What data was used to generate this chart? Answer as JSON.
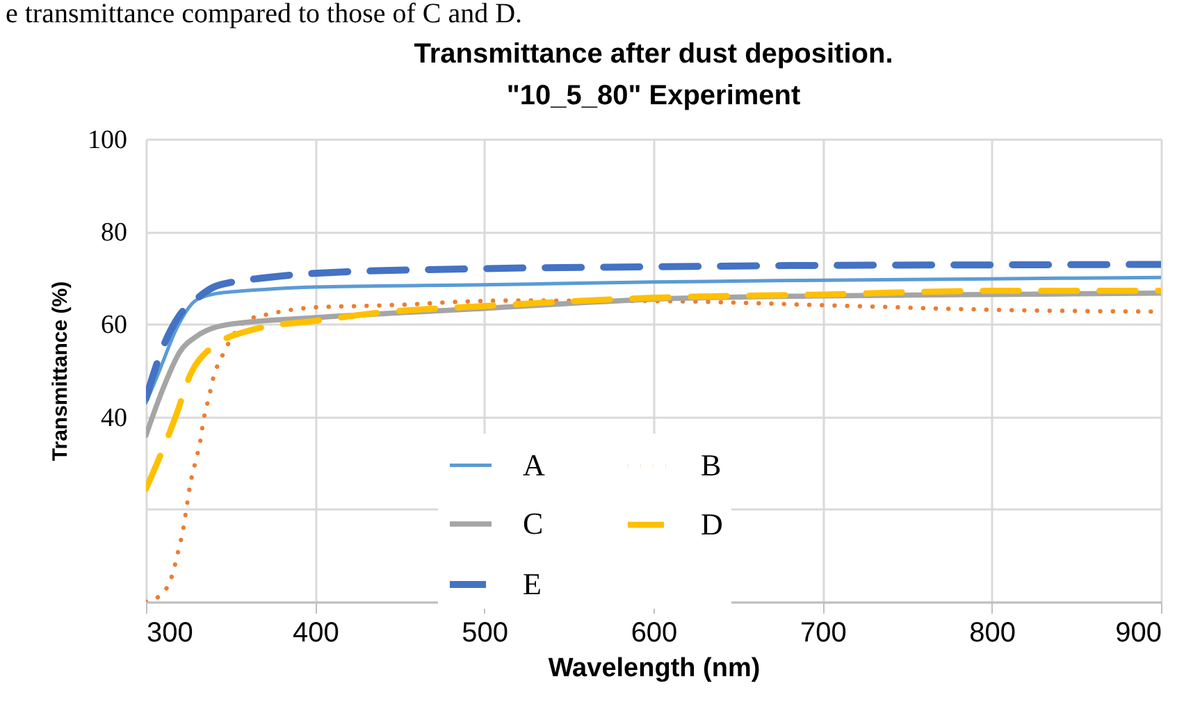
{
  "chart_data": {
    "type": "line",
    "title": "Transmittance after dust deposition.\n\"10_5_80\" Experiment",
    "xlabel": "Wavelength (nm)",
    "ylabel": "Transmittance (%)",
    "annotations": [
      "e transmittance compared to those of C and D."
    ],
    "xlim": [
      300,
      900
    ],
    "xticks": [
      300,
      400,
      500,
      600,
      700,
      800,
      900
    ],
    "ylim": [
      0,
      100
    ],
    "yticks": [
      {
        "value": 0,
        "label": null
      },
      {
        "value": 20,
        "label": null
      },
      40,
      60,
      80,
      100
    ],
    "grid": true,
    "legend": "bottom",
    "series": [
      {
        "name": "A",
        "color": "#5b9bd5",
        "line_style": "solid",
        "x": [
          300,
          308,
          318,
          329,
          340,
          351,
          370,
          400,
          500,
          600,
          700,
          800,
          900
        ],
        "values": [
          43,
          50,
          59,
          65,
          66.5,
          67,
          67.5,
          68,
          68.5,
          69.1,
          69.5,
          69.8,
          70.1
        ]
      },
      {
        "name": "B",
        "color": "#ed7d31",
        "line_style": "dotted",
        "x": [
          300,
          310,
          316,
          319,
          322,
          324,
          326,
          329,
          332,
          334,
          337,
          340,
          345,
          360,
          373,
          399,
          425,
          452,
          490,
          516,
          600,
          700,
          800,
          900
        ],
        "values": [
          0,
          1.9,
          6.4,
          10.9,
          15.7,
          20.4,
          25.1,
          29.9,
          34.6,
          39.3,
          43.9,
          48.7,
          53.1,
          60.9,
          62.2,
          63.6,
          63.9,
          64.2,
          64.9,
          65.1,
          65,
          64.1,
          63.1,
          62.7
        ]
      },
      {
        "name": "C",
        "color": "#a5a5a5",
        "line_style": "solid",
        "x": [
          300,
          310,
          320,
          330,
          350,
          400,
          500,
          600,
          700,
          800,
          900
        ],
        "values": [
          36,
          46,
          54,
          57.4,
          60,
          61.4,
          63.4,
          65.4,
          66.1,
          66.4,
          66.7
        ]
      },
      {
        "name": "D",
        "color": "#ffc000",
        "line_style": "dashed",
        "x": [
          300,
          318,
          326,
          337,
          364,
          400,
          436,
          500,
          600,
          700,
          800,
          900
        ],
        "values": [
          24.4,
          40.5,
          48.9,
          54.4,
          58.9,
          60.7,
          62.4,
          63.9,
          65.7,
          66.4,
          67.2,
          67.2
        ]
      },
      {
        "name": "E",
        "color": "#4472c4",
        "line_style": "dashed",
        "x": [
          300,
          310,
          320,
          330,
          340,
          350,
          370,
          400,
          500,
          600,
          700,
          800,
          900
        ],
        "values": [
          44,
          55,
          62,
          65.5,
          68,
          69,
          70,
          71,
          72,
          72.4,
          72.7,
          72.8,
          72.9
        ]
      }
    ]
  }
}
